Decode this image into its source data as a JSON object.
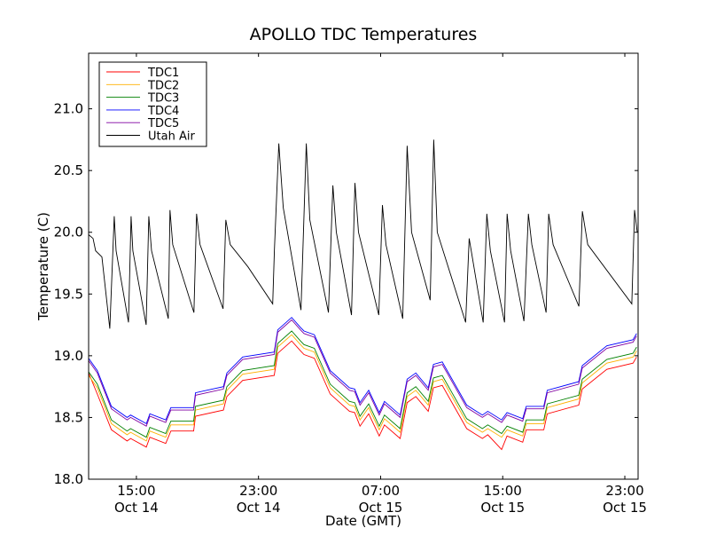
{
  "chart_data": {
    "type": "line",
    "title": "APOLLO TDC Temperatures",
    "xlabel": "Date (GMT)",
    "ylabel": "Temperature (C)",
    "x_units": "hours since Oct 14 00:00 GMT",
    "xlim": [
      11.87,
      47.87
    ],
    "ylim": [
      18.0,
      21.45
    ],
    "yticks": [
      18.0,
      18.5,
      19.0,
      19.5,
      20.0,
      20.5,
      21.0
    ],
    "ytick_labels": [
      "18.0",
      "18.5",
      "19.0",
      "19.5",
      "20.0",
      "20.5",
      "21.0"
    ],
    "xticks": [
      15,
      23,
      31,
      39,
      47
    ],
    "xtick_labels": [
      [
        "15:00",
        "Oct 14"
      ],
      [
        "23:00",
        "Oct 14"
      ],
      [
        "07:00",
        "Oct 15"
      ],
      [
        "15:00",
        "Oct 15"
      ],
      [
        "23:00",
        "Oct 15"
      ]
    ],
    "grid": false,
    "legend_position": "top-left",
    "tdc_x": [
      11.87,
      12.44,
      13.36,
      14.39,
      14.62,
      15.65,
      15.88,
      16.92,
      17.26,
      18.75,
      18.87,
      20.7,
      20.93,
      21.96,
      24.03,
      24.26,
      25.17,
      25.75,
      25.98,
      26.66,
      27.7,
      28.96,
      29.3,
      29.65,
      30.22,
      30.91,
      31.25,
      32.28,
      32.74,
      33.31,
      34.12,
      34.46,
      35.04,
      36.64,
      37.67,
      38.02,
      38.93,
      39.28,
      40.31,
      40.54,
      41.69,
      41.92,
      43.98,
      44.21,
      45.82,
      47.54,
      47.77
    ],
    "series": [
      {
        "name": "TDC1",
        "color": "#ff0000",
        "x_key": "tdc_x",
        "values": [
          18.86,
          18.69,
          18.4,
          18.31,
          18.33,
          18.26,
          18.34,
          18.29,
          18.39,
          18.39,
          18.51,
          18.56,
          18.67,
          18.8,
          18.84,
          19.02,
          19.12,
          19.04,
          19.01,
          18.98,
          18.69,
          18.55,
          18.54,
          18.43,
          18.53,
          18.35,
          18.44,
          18.33,
          18.62,
          18.67,
          18.55,
          18.74,
          18.76,
          18.41,
          18.33,
          18.36,
          18.24,
          18.35,
          18.3,
          18.4,
          18.4,
          18.53,
          18.6,
          18.73,
          18.89,
          18.94,
          18.99
        ]
      },
      {
        "name": "TDC2",
        "color": "#ffb000",
        "x_key": "tdc_x",
        "values": [
          18.84,
          18.74,
          18.45,
          18.36,
          18.38,
          18.31,
          18.39,
          18.34,
          18.44,
          18.44,
          18.56,
          18.61,
          18.72,
          18.85,
          18.89,
          19.07,
          19.17,
          19.09,
          19.06,
          19.03,
          18.74,
          18.6,
          18.59,
          18.48,
          18.58,
          18.4,
          18.49,
          18.38,
          18.67,
          18.72,
          18.6,
          18.79,
          18.81,
          18.46,
          18.38,
          18.41,
          18.34,
          18.4,
          18.35,
          18.45,
          18.45,
          18.58,
          18.65,
          18.78,
          18.94,
          18.99,
          19.04
        ]
      },
      {
        "name": "TDC3",
        "color": "#008000",
        "x_key": "tdc_x",
        "values": [
          18.87,
          18.77,
          18.48,
          18.39,
          18.41,
          18.34,
          18.42,
          18.37,
          18.47,
          18.47,
          18.59,
          18.64,
          18.75,
          18.88,
          18.92,
          19.1,
          19.2,
          19.12,
          19.09,
          19.06,
          18.77,
          18.63,
          18.62,
          18.51,
          18.61,
          18.43,
          18.52,
          18.41,
          18.7,
          18.75,
          18.63,
          18.82,
          18.84,
          18.49,
          18.41,
          18.44,
          18.37,
          18.43,
          18.38,
          18.48,
          18.48,
          18.61,
          18.68,
          18.81,
          18.97,
          19.02,
          19.07
        ]
      },
      {
        "name": "TDC4",
        "color": "#0000ff",
        "x_key": "tdc_x",
        "values": [
          18.98,
          18.88,
          18.59,
          18.5,
          18.52,
          18.45,
          18.53,
          18.48,
          18.58,
          18.58,
          18.7,
          18.75,
          18.86,
          18.99,
          19.03,
          19.21,
          19.31,
          19.23,
          19.2,
          19.17,
          18.88,
          18.74,
          18.73,
          18.62,
          18.72,
          18.54,
          18.63,
          18.52,
          18.81,
          18.86,
          18.74,
          18.93,
          18.95,
          18.6,
          18.52,
          18.55,
          18.48,
          18.54,
          18.49,
          18.59,
          18.59,
          18.72,
          18.79,
          18.92,
          19.08,
          19.13,
          19.18
        ]
      },
      {
        "name": "TDC5",
        "color": "#8000a0",
        "x_key": "tdc_x",
        "values": [
          18.96,
          18.86,
          18.57,
          18.48,
          18.5,
          18.43,
          18.51,
          18.46,
          18.56,
          18.56,
          18.68,
          18.73,
          18.84,
          18.97,
          19.01,
          19.19,
          19.29,
          19.21,
          19.18,
          19.15,
          18.86,
          18.72,
          18.71,
          18.6,
          18.7,
          18.52,
          18.61,
          18.5,
          18.79,
          18.84,
          18.72,
          18.91,
          18.93,
          18.58,
          18.5,
          18.53,
          18.46,
          18.52,
          18.47,
          18.57,
          18.57,
          18.7,
          18.77,
          18.9,
          19.06,
          19.11,
          19.16
        ]
      },
      {
        "name": "Utah Air",
        "color": "#000000",
        "x_key": "air_x",
        "values": [
          19.98,
          19.95,
          19.85,
          19.8,
          19.22,
          20.13,
          19.85,
          19.27,
          20.13,
          19.85,
          19.25,
          20.13,
          19.85,
          19.3,
          20.18,
          19.9,
          19.35,
          20.15,
          19.9,
          19.38,
          20.1,
          19.9,
          19.72,
          19.42,
          19.85,
          20.72,
          20.2,
          19.37,
          20.72,
          20.1,
          19.35,
          20.38,
          20.0,
          19.33,
          20.4,
          20.0,
          19.33,
          20.22,
          19.9,
          19.3,
          20.7,
          20.0,
          19.45,
          20.75,
          20.0,
          19.27,
          19.95,
          19.27,
          20.15,
          19.85,
          19.27,
          20.15,
          19.85,
          19.28,
          20.15,
          19.9,
          19.35,
          20.15,
          19.9,
          19.4,
          20.17,
          19.9,
          19.42,
          20.18,
          20.0
        ]
      }
    ],
    "air_x": [
      11.87,
      12.16,
      12.33,
      12.74,
      13.26,
      13.55,
      13.67,
      14.48,
      14.65,
      14.77,
      15.64,
      15.81,
      15.99,
      17.09,
      17.2,
      17.38,
      18.77,
      18.94,
      19.17,
      20.68,
      20.86,
      21.15,
      22.31,
      23.93,
      24.04,
      24.33,
      24.62,
      25.78,
      26.13,
      26.36,
      27.58,
      27.87,
      28.1,
      29.09,
      29.32,
      29.55,
      30.88,
      31.12,
      31.35,
      32.45,
      32.74,
      33.03,
      34.25,
      34.48,
      34.71,
      36.57,
      36.8,
      37.72,
      37.96,
      38.19,
      39.12,
      39.29,
      39.52,
      40.39,
      40.68,
      40.91,
      41.84,
      42.01,
      42.3,
      43.99,
      44.22,
      44.57,
      47.46,
      47.64,
      47.81
    ]
  }
}
